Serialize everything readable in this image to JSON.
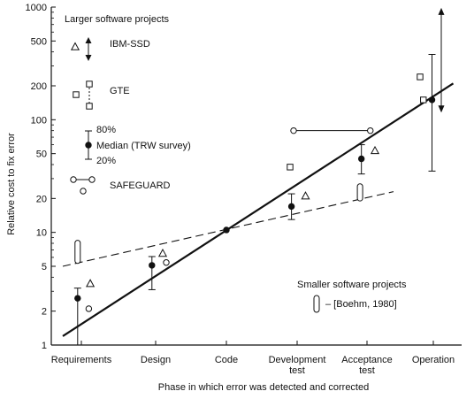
{
  "chart_data": {
    "type": "scatter",
    "title": "",
    "xlabel": "Phase in which error was detected and corrected",
    "ylabel": "Relative cost to fix error",
    "y_scale": "log",
    "ylim": [
      1,
      1000
    ],
    "grid": false,
    "categories": [
      "Requirements",
      "Design",
      "Code",
      "Development\ntest",
      "Acceptance\ntest",
      "Operation"
    ],
    "y_ticks": [
      "1",
      "2",
      "5",
      "10",
      "20",
      "50",
      "100",
      "200",
      "500",
      "1000"
    ],
    "legend_position": "top-left",
    "legend": {
      "heading": "Larger software projects",
      "items": [
        {
          "label": "IBM-SSD"
        },
        {
          "label": "GTE"
        },
        {
          "label": "Median (TRW survey)",
          "upper": "80%",
          "lower": "20%"
        },
        {
          "label": "SAFEGUARD"
        }
      ]
    },
    "small_legend": {
      "heading": "Smaller software projects",
      "label": "– [Boehm, 1980]"
    },
    "series": [
      {
        "name": "IBM-SSD",
        "marker": "triangle",
        "x": [
          0.12,
          1.1,
          3.12,
          4.12
        ],
        "y": [
          3.5,
          6.5,
          21,
          53
        ]
      },
      {
        "name": "GTE",
        "marker": "square",
        "x": [
          2.9,
          4.8,
          4.85
        ],
        "y": [
          38,
          240,
          150
        ]
      },
      {
        "name": "Median (TRW survey)",
        "marker": "dot",
        "x": [
          -0.05,
          0.95,
          2.0,
          2.92,
          3.92,
          4.98
        ],
        "y": [
          2.6,
          5.1,
          10.5,
          17,
          45,
          150
        ]
      },
      {
        "name": "SAFEGUARD",
        "marker": "circle",
        "x": [
          0.1,
          1.15,
          2.95,
          4.05
        ],
        "y": [
          2.1,
          5.4,
          80,
          80
        ]
      },
      {
        "name": "[Boehm, 1980]",
        "marker": "capsule",
        "x": [
          -0.05,
          3.9
        ],
        "y_range": [
          [
            5.3,
            8.5
          ],
          [
            19,
            27
          ]
        ]
      }
    ],
    "error_bars": [
      {
        "x": -0.05,
        "low": 1,
        "high": 3.2
      },
      {
        "x": 0.95,
        "low": 3.1,
        "high": 6.1
      },
      {
        "x": 2.92,
        "low": 13,
        "high": 22
      },
      {
        "x": 3.92,
        "low": 33,
        "high": 60
      },
      {
        "x": 4.98,
        "low": 35,
        "high": 380
      }
    ],
    "ranges": [
      {
        "type": "safeguard",
        "x0": 2.95,
        "x1": 4.05,
        "y": 80
      },
      {
        "type": "ibm",
        "x": 5.12,
        "low": 120,
        "high": 950
      }
    ],
    "trend_lines": [
      {
        "style": "solid",
        "x0": -0.25,
        "y0": 1.2,
        "x1": 5.3,
        "y1": 210
      },
      {
        "style": "dashed",
        "x0": -0.25,
        "y0": 5,
        "x1": 4.4,
        "y1": 23
      }
    ]
  }
}
